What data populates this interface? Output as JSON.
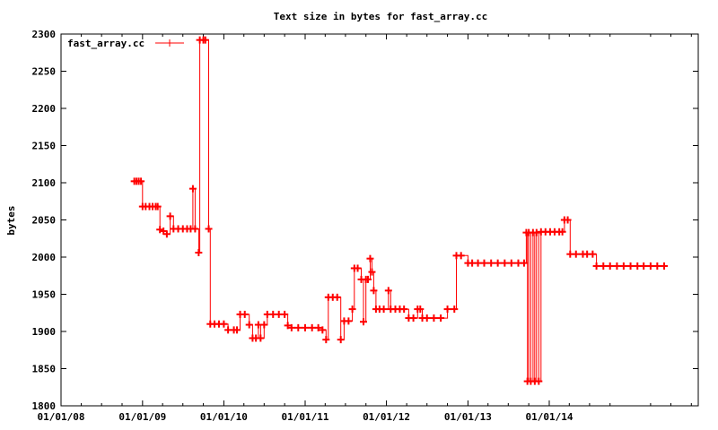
{
  "chart_data": {
    "type": "line",
    "title": "Text size in bytes for fast_array.cc",
    "xlabel": "",
    "ylabel": "bytes",
    "ylim": [
      1800,
      2300
    ],
    "xlim": [
      "2008-01-01",
      "2015-11-01"
    ],
    "yticks": [
      1800,
      1850,
      1900,
      1950,
      2000,
      2050,
      2100,
      2150,
      2200,
      2250,
      2300
    ],
    "xticks": [
      {
        "date": "2008-01-01",
        "label": "01/01/08"
      },
      {
        "date": "2009-01-01",
        "label": "01/01/09"
      },
      {
        "date": "2010-01-01",
        "label": "01/01/10"
      },
      {
        "date": "2011-01-01",
        "label": "01/01/11"
      },
      {
        "date": "2012-01-01",
        "label": "01/01/12"
      },
      {
        "date": "2013-01-01",
        "label": "01/01/13"
      },
      {
        "date": "2014-01-01",
        "label": "01/01/14"
      }
    ],
    "grid": false,
    "legend_position": "top-left",
    "color": "#ff0000",
    "series": [
      {
        "name": "fast_array.cc",
        "points": [
          [
            "2008-11-25",
            2102
          ],
          [
            "2008-12-05",
            2102
          ],
          [
            "2008-12-15",
            2102
          ],
          [
            "2008-12-25",
            2102
          ],
          [
            "2009-01-01",
            2068
          ],
          [
            "2009-01-15",
            2068
          ],
          [
            "2009-02-01",
            2068
          ],
          [
            "2009-02-15",
            2068
          ],
          [
            "2009-03-01",
            2068
          ],
          [
            "2009-03-10",
            2068
          ],
          [
            "2009-03-20",
            2037
          ],
          [
            "2009-04-05",
            2035
          ],
          [
            "2009-04-20",
            2031
          ],
          [
            "2009-05-05",
            2055
          ],
          [
            "2009-05-20",
            2038
          ],
          [
            "2009-06-10",
            2038
          ],
          [
            "2009-07-01",
            2038
          ],
          [
            "2009-07-20",
            2038
          ],
          [
            "2009-08-05",
            2038
          ],
          [
            "2009-08-15",
            2092
          ],
          [
            "2009-08-25",
            2038
          ],
          [
            "2009-09-10",
            2006
          ],
          [
            "2009-09-15",
            2292
          ],
          [
            "2009-10-01",
            2292
          ],
          [
            "2009-10-10",
            2292
          ],
          [
            "2009-10-25",
            2038
          ],
          [
            "2009-11-01",
            1910
          ],
          [
            "2009-11-20",
            1910
          ],
          [
            "2009-12-10",
            1910
          ],
          [
            "2010-01-01",
            1910
          ],
          [
            "2010-01-20",
            1902
          ],
          [
            "2010-02-15",
            1902
          ],
          [
            "2010-03-01",
            1902
          ],
          [
            "2010-03-15",
            1923
          ],
          [
            "2010-04-05",
            1923
          ],
          [
            "2010-04-25",
            1909
          ],
          [
            "2010-05-10",
            1891
          ],
          [
            "2010-05-25",
            1891
          ],
          [
            "2010-06-05",
            1909
          ],
          [
            "2010-06-15",
            1891
          ],
          [
            "2010-07-01",
            1909
          ],
          [
            "2010-07-15",
            1923
          ],
          [
            "2010-08-10",
            1923
          ],
          [
            "2010-09-05",
            1923
          ],
          [
            "2010-10-01",
            1923
          ],
          [
            "2010-10-15",
            1908
          ],
          [
            "2010-11-01",
            1905
          ],
          [
            "2010-12-01",
            1905
          ],
          [
            "2011-01-01",
            1905
          ],
          [
            "2011-02-01",
            1905
          ],
          [
            "2011-03-01",
            1905
          ],
          [
            "2011-03-20",
            1902
          ],
          [
            "2011-04-05",
            1889
          ],
          [
            "2011-04-15",
            1946
          ],
          [
            "2011-05-05",
            1946
          ],
          [
            "2011-05-25",
            1946
          ],
          [
            "2011-06-10",
            1889
          ],
          [
            "2011-06-25",
            1914
          ],
          [
            "2011-07-15",
            1914
          ],
          [
            "2011-08-01",
            1930
          ],
          [
            "2011-08-10",
            1985
          ],
          [
            "2011-08-25",
            1985
          ],
          [
            "2011-09-10",
            1970
          ],
          [
            "2011-09-20",
            1913
          ],
          [
            "2011-10-01",
            1970
          ],
          [
            "2011-10-10",
            1970
          ],
          [
            "2011-10-20",
            1998
          ],
          [
            "2011-10-28",
            1980
          ],
          [
            "2011-11-05",
            1955
          ],
          [
            "2011-11-15",
            1930
          ],
          [
            "2011-12-01",
            1930
          ],
          [
            "2011-12-20",
            1930
          ],
          [
            "2012-01-10",
            1955
          ],
          [
            "2012-01-20",
            1930
          ],
          [
            "2012-02-10",
            1930
          ],
          [
            "2012-03-01",
            1930
          ],
          [
            "2012-03-20",
            1930
          ],
          [
            "2012-04-10",
            1918
          ],
          [
            "2012-05-01",
            1918
          ],
          [
            "2012-05-20",
            1930
          ],
          [
            "2012-06-01",
            1930
          ],
          [
            "2012-06-10",
            1918
          ],
          [
            "2012-07-01",
            1918
          ],
          [
            "2012-08-01",
            1918
          ],
          [
            "2012-09-01",
            1918
          ],
          [
            "2012-10-01",
            1930
          ],
          [
            "2012-11-01",
            1930
          ],
          [
            "2012-11-10",
            2002
          ],
          [
            "2012-12-01",
            2002
          ],
          [
            "2013-01-01",
            1992
          ],
          [
            "2013-01-20",
            1992
          ],
          [
            "2013-02-15",
            1992
          ],
          [
            "2013-03-15",
            1992
          ],
          [
            "2013-04-15",
            1992
          ],
          [
            "2013-05-15",
            1992
          ],
          [
            "2013-06-15",
            1992
          ],
          [
            "2013-07-15",
            1992
          ],
          [
            "2013-08-15",
            1992
          ],
          [
            "2013-09-10",
            1992
          ],
          [
            "2013-09-20",
            2033
          ],
          [
            "2013-09-25",
            1833
          ],
          [
            "2013-10-01",
            2033
          ],
          [
            "2013-10-10",
            1833
          ],
          [
            "2013-10-20",
            2033
          ],
          [
            "2013-10-28",
            1833
          ],
          [
            "2013-11-05",
            2033
          ],
          [
            "2013-11-15",
            1833
          ],
          [
            "2013-11-25",
            2034
          ],
          [
            "2013-12-15",
            2034
          ],
          [
            "2014-01-05",
            2034
          ],
          [
            "2014-01-25",
            2034
          ],
          [
            "2014-02-15",
            2034
          ],
          [
            "2014-03-01",
            2034
          ],
          [
            "2014-03-10",
            2050
          ],
          [
            "2014-03-25",
            2050
          ],
          [
            "2014-04-05",
            2004
          ],
          [
            "2014-05-01",
            2004
          ],
          [
            "2014-06-01",
            2004
          ],
          [
            "2014-06-20",
            2004
          ],
          [
            "2014-07-15",
            2004
          ],
          [
            "2014-08-01",
            1988
          ],
          [
            "2014-09-01",
            1988
          ],
          [
            "2014-10-01",
            1988
          ],
          [
            "2014-11-01",
            1988
          ],
          [
            "2014-12-01",
            1988
          ],
          [
            "2015-01-01",
            1988
          ],
          [
            "2015-02-01",
            1988
          ],
          [
            "2015-03-01",
            1988
          ],
          [
            "2015-04-01",
            1988
          ],
          [
            "2015-05-01",
            1988
          ],
          [
            "2015-06-01",
            1988
          ]
        ]
      }
    ]
  }
}
